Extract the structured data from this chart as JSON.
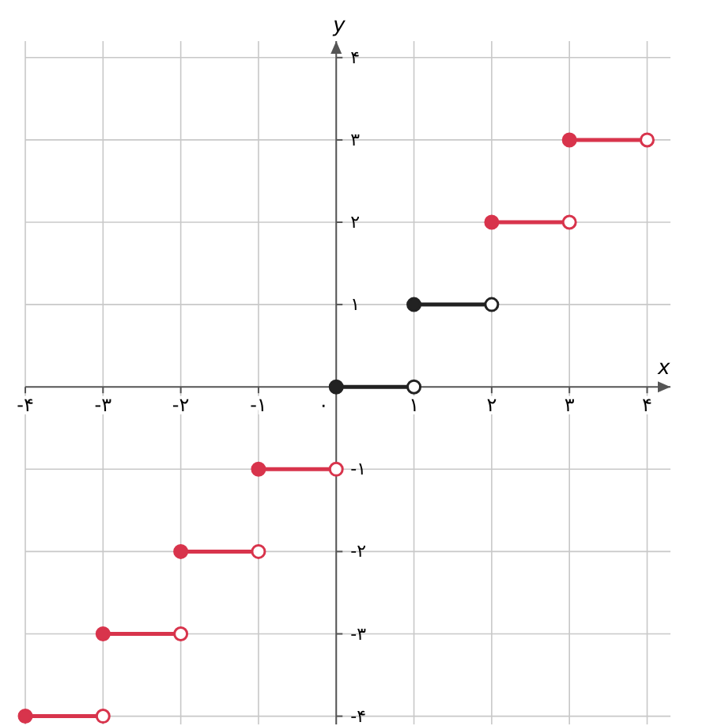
{
  "chart_data": {
    "type": "line",
    "xlabel": "x",
    "ylabel": "y",
    "xlim": [
      -4,
      4.3
    ],
    "ylim": [
      -4.1,
      4.2
    ],
    "xticks": [
      {
        "value": -4,
        "label": "-۴"
      },
      {
        "value": -3,
        "label": "-۳"
      },
      {
        "value": -2,
        "label": "-۲"
      },
      {
        "value": -1,
        "label": "-۱"
      },
      {
        "value": 0,
        "label": "۰"
      },
      {
        "value": 1,
        "label": "۱"
      },
      {
        "value": 2,
        "label": "۲"
      },
      {
        "value": 3,
        "label": "۳"
      },
      {
        "value": 4,
        "label": "۴"
      }
    ],
    "yticks": [
      {
        "value": -4,
        "label": "-۴"
      },
      {
        "value": -3,
        "label": "-۳"
      },
      {
        "value": -2,
        "label": "-۲"
      },
      {
        "value": -1,
        "label": "-۱"
      },
      {
        "value": 1,
        "label": "۱"
      },
      {
        "value": 2,
        "label": "۲"
      },
      {
        "value": 3,
        "label": "۳"
      },
      {
        "value": 4,
        "label": "۴"
      }
    ],
    "grid": true,
    "marker": "circle",
    "line_style": "solid",
    "series": [
      {
        "color": "#d8344c",
        "x": [
          -4,
          -3
        ],
        "values": [
          -4,
          -4
        ]
      },
      {
        "color": "#d8344c",
        "x": [
          -3,
          -2
        ],
        "values": [
          -3,
          -3
        ]
      },
      {
        "color": "#d8344c",
        "x": [
          -2,
          -1
        ],
        "values": [
          -2,
          -2
        ]
      },
      {
        "color": "#d8344c",
        "x": [
          -1,
          0
        ],
        "values": [
          -1,
          -1
        ]
      },
      {
        "color": "#222222",
        "x": [
          0,
          1
        ],
        "values": [
          0,
          0
        ]
      },
      {
        "color": "#222222",
        "x": [
          1,
          2
        ],
        "values": [
          1,
          1
        ]
      },
      {
        "color": "#d8344c",
        "x": [
          2,
          3
        ],
        "values": [
          2,
          2
        ]
      },
      {
        "color": "#d8344c",
        "x": [
          3,
          4
        ],
        "values": [
          3,
          3
        ]
      }
    ]
  }
}
